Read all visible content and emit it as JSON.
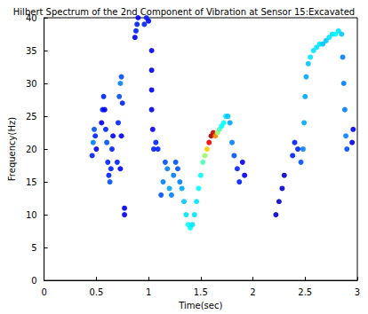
{
  "chart_data": {
    "type": "scatter",
    "title": "Hilbert Spectrum of the 2nd Component of Vibration at Sensor 15:Excavated",
    "x_label": "Time(sec)",
    "y_label": "Frequency(Hz)",
    "xlim": [
      0,
      3
    ],
    "xticks": [
      0,
      0.5,
      1,
      1.5,
      2,
      2.5,
      3
    ],
    "ylim": [
      0,
      40
    ],
    "yticks": [
      0,
      5,
      10,
      15,
      20,
      25,
      30,
      35,
      40
    ],
    "grid": false,
    "color_range": [
      0,
      1
    ],
    "points": [
      [
        0.46,
        19,
        0.2
      ],
      [
        0.47,
        21,
        0.3
      ],
      [
        0.48,
        23,
        0.25
      ],
      [
        0.49,
        22,
        0.2
      ],
      [
        0.5,
        20,
        0.15
      ],
      [
        0.55,
        24,
        0.15
      ],
      [
        0.56,
        26,
        0.2
      ],
      [
        0.57,
        28,
        0.2
      ],
      [
        0.58,
        26,
        0.15
      ],
      [
        0.59,
        23,
        0.2
      ],
      [
        0.6,
        21,
        0.25
      ],
      [
        0.61,
        18,
        0.2
      ],
      [
        0.62,
        16,
        0.2
      ],
      [
        0.63,
        15,
        0.25
      ],
      [
        0.64,
        17,
        0.2
      ],
      [
        0.65,
        20,
        0.2
      ],
      [
        0.66,
        22,
        0.15
      ],
      [
        0.7,
        18,
        0.2
      ],
      [
        0.71,
        24,
        0.2
      ],
      [
        0.72,
        28,
        0.25
      ],
      [
        0.73,
        30,
        0.3
      ],
      [
        0.74,
        31,
        0.25
      ],
      [
        0.75,
        27,
        0.2
      ],
      [
        0.74,
        22,
        0.15
      ],
      [
        0.73,
        17,
        0.15
      ],
      [
        0.77,
        10,
        0.15
      ],
      [
        0.77,
        11,
        0.15
      ],
      [
        0.87,
        37,
        0.15
      ],
      [
        0.88,
        38,
        0.2
      ],
      [
        0.89,
        39,
        0.2
      ],
      [
        0.9,
        40,
        0.15
      ],
      [
        0.96,
        39,
        0.2
      ],
      [
        0.98,
        40,
        0.2
      ],
      [
        1.0,
        39.5,
        0.15
      ],
      [
        1.03,
        35,
        0.15
      ],
      [
        1.03,
        32,
        0.15
      ],
      [
        1.03,
        29,
        0.15
      ],
      [
        1.03,
        26,
        0.15
      ],
      [
        1.04,
        23,
        0.15
      ],
      [
        1.05,
        20,
        0.2
      ],
      [
        1.07,
        21,
        0.2
      ],
      [
        1.09,
        20,
        0.2
      ],
      [
        1.12,
        13,
        0.25
      ],
      [
        1.14,
        15,
        0.3
      ],
      [
        1.16,
        18,
        0.25
      ],
      [
        1.18,
        17,
        0.3
      ],
      [
        1.2,
        14,
        0.35
      ],
      [
        1.22,
        13,
        0.3
      ],
      [
        1.24,
        16,
        0.3
      ],
      [
        1.26,
        18,
        0.25
      ],
      [
        1.28,
        17,
        0.25
      ],
      [
        1.3,
        15,
        0.3
      ],
      [
        1.32,
        14,
        0.35
      ],
      [
        1.34,
        12,
        0.4
      ],
      [
        1.36,
        10,
        0.45
      ],
      [
        1.38,
        8.5,
        0.5
      ],
      [
        1.4,
        8,
        0.5
      ],
      [
        1.42,
        8.5,
        0.45
      ],
      [
        1.44,
        10,
        0.45
      ],
      [
        1.46,
        12,
        0.45
      ],
      [
        1.48,
        14,
        0.5
      ],
      [
        1.5,
        16,
        0.5
      ],
      [
        1.52,
        18,
        0.55
      ],
      [
        1.54,
        19,
        0.6
      ],
      [
        1.56,
        20,
        0.7
      ],
      [
        1.58,
        21,
        0.85
      ],
      [
        1.6,
        22,
        0.95
      ],
      [
        1.62,
        22.5,
        0.9
      ],
      [
        1.64,
        22,
        0.75
      ],
      [
        1.66,
        22.5,
        0.6
      ],
      [
        1.68,
        23,
        0.55
      ],
      [
        1.7,
        23.5,
        0.5
      ],
      [
        1.72,
        24,
        0.5
      ],
      [
        1.74,
        25,
        0.45
      ],
      [
        1.76,
        25,
        0.4
      ],
      [
        1.78,
        24,
        0.35
      ],
      [
        1.8,
        21,
        0.3
      ],
      [
        1.82,
        19,
        0.25
      ],
      [
        1.85,
        17,
        0.2
      ],
      [
        1.87,
        15,
        0.2
      ],
      [
        1.9,
        18,
        0.15
      ],
      [
        1.92,
        16,
        0.15
      ],
      [
        2.22,
        10,
        0.1
      ],
      [
        2.25,
        12,
        0.1
      ],
      [
        2.28,
        14,
        0.1
      ],
      [
        2.3,
        16,
        0.1
      ],
      [
        2.38,
        19,
        0.2
      ],
      [
        2.4,
        21,
        0.2
      ],
      [
        2.43,
        20,
        0.2
      ],
      [
        2.46,
        18,
        0.25
      ],
      [
        2.48,
        20,
        0.3
      ],
      [
        2.49,
        24,
        0.35
      ],
      [
        2.5,
        28,
        0.35
      ],
      [
        2.51,
        31,
        0.35
      ],
      [
        2.53,
        33,
        0.4
      ],
      [
        2.55,
        34,
        0.45
      ],
      [
        2.58,
        35,
        0.45
      ],
      [
        2.61,
        35.5,
        0.45
      ],
      [
        2.64,
        36,
        0.45
      ],
      [
        2.67,
        36,
        0.4
      ],
      [
        2.7,
        36.5,
        0.4
      ],
      [
        2.73,
        37,
        0.45
      ],
      [
        2.76,
        37.5,
        0.45
      ],
      [
        2.79,
        37.5,
        0.5
      ],
      [
        2.82,
        38,
        0.45
      ],
      [
        2.85,
        37.5,
        0.4
      ],
      [
        2.86,
        34,
        0.3
      ],
      [
        2.87,
        30,
        0.3
      ],
      [
        2.88,
        26,
        0.3
      ],
      [
        2.89,
        22,
        0.3
      ],
      [
        2.9,
        20,
        0.25
      ],
      [
        2.95,
        21,
        0.15
      ],
      [
        2.96,
        23,
        0.15
      ]
    ]
  }
}
